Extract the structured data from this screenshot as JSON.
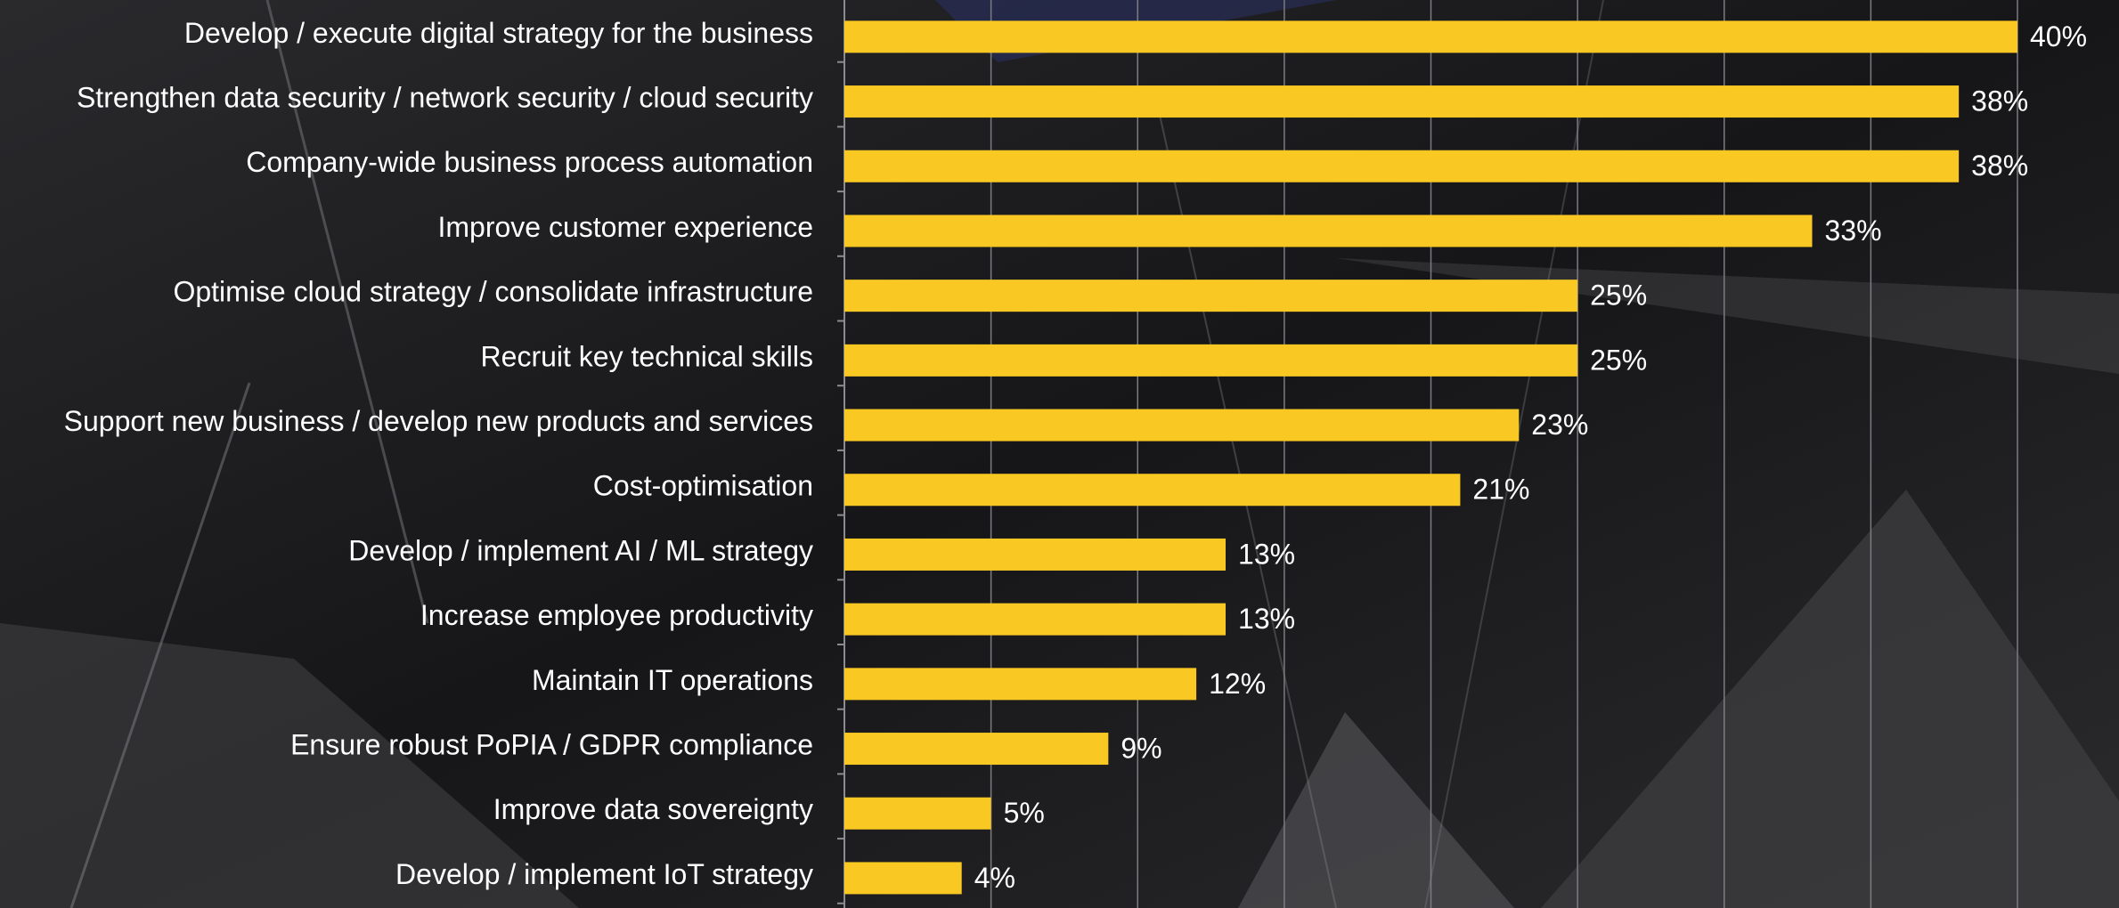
{
  "chart_data": {
    "type": "hbar",
    "categories": [
      "Develop / execute digital strategy for the business",
      "Strengthen data security / network security / cloud security",
      "Company-wide business process automation",
      "Improve customer experience",
      "Optimise cloud strategy / consolidate infrastructure",
      "Recruit key technical skills",
      "Support new business / develop new products and services",
      "Cost-optimisation",
      "Develop / implement AI / ML strategy",
      "Increase employee productivity",
      "Maintain IT operations",
      "Ensure robust PoPIA / GDPR compliance",
      "Improve data sovereignty",
      "Develop / implement IoT strategy"
    ],
    "values": [
      40,
      38,
      38,
      33,
      25,
      25,
      23,
      21,
      13,
      13,
      12,
      9,
      5,
      4
    ],
    "value_labels": [
      "40%",
      "38%",
      "38%",
      "33%",
      "25%",
      "25%",
      "23%",
      "21%",
      "13%",
      "13%",
      "12%",
      "9%",
      "5%",
      "4%"
    ],
    "color": "#f9c823",
    "xlim": [
      0,
      40
    ],
    "xticks": [
      0,
      5,
      10,
      15,
      20,
      25,
      30,
      35,
      40
    ],
    "grid": true
  }
}
